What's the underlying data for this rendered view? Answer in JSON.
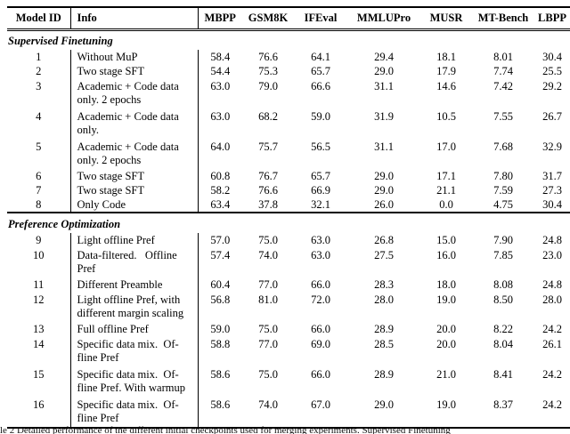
{
  "table": {
    "columns": [
      "Model ID",
      "Info",
      "MBPP",
      "GSM8K",
      "IFEval",
      "MMLUPro",
      "MUSR",
      "MT-Bench",
      "LBPP"
    ],
    "sections": [
      {
        "title": "Supervised Finetuning",
        "rows": [
          {
            "id": "1",
            "info": "Without MuP",
            "values": [
              "58.4",
              "76.6",
              "64.1",
              "29.4",
              "18.1",
              "8.01",
              "30.4"
            ]
          },
          {
            "id": "2",
            "info": "Two stage SFT",
            "values": [
              "54.4",
              "75.3",
              "65.7",
              "29.0",
              "17.9",
              "7.74",
              "25.5"
            ]
          },
          {
            "id": "3",
            "info": "Academic + Code data\nonly. 2 epochs",
            "values": [
              "63.0",
              "79.0",
              "66.6",
              "31.1",
              "14.6",
              "7.42",
              "29.2"
            ]
          },
          {
            "id": "4",
            "info": "Academic + Code data\nonly.",
            "values": [
              "63.0",
              "68.2",
              "59.0",
              "31.9",
              "10.5",
              "7.55",
              "26.7"
            ]
          },
          {
            "id": "5",
            "info": "Academic + Code data\nonly. 2 epochs",
            "values": [
              "64.0",
              "75.7",
              "56.5",
              "31.1",
              "17.0",
              "7.68",
              "32.9"
            ]
          },
          {
            "id": "6",
            "info": "Two stage SFT",
            "values": [
              "60.8",
              "76.7",
              "65.7",
              "29.0",
              "17.1",
              "7.80",
              "31.7"
            ]
          },
          {
            "id": "7",
            "info": "Two stage SFT",
            "values": [
              "58.2",
              "76.6",
              "66.9",
              "29.0",
              "21.1",
              "7.59",
              "27.3"
            ]
          },
          {
            "id": "8",
            "info": "Only Code",
            "values": [
              "63.4",
              "37.8",
              "32.1",
              "26.0",
              "0.0",
              "4.75",
              "30.4"
            ]
          }
        ]
      },
      {
        "title": "Preference Optimization",
        "rows": [
          {
            "id": "9",
            "info": "Light offline Pref",
            "values": [
              "57.0",
              "75.0",
              "63.0",
              "26.8",
              "15.0",
              "7.90",
              "24.8"
            ]
          },
          {
            "id": "10",
            "info": "Data-filtered.   Offline\nPref",
            "values": [
              "57.4",
              "74.0",
              "63.0",
              "27.5",
              "16.0",
              "7.85",
              "23.0"
            ]
          },
          {
            "id": "11",
            "info": "Different Preamble",
            "values": [
              "60.4",
              "77.0",
              "66.0",
              "28.3",
              "18.0",
              "8.08",
              "24.8"
            ]
          },
          {
            "id": "12",
            "info": "Light offline Pref, with\ndifferent margin scaling",
            "values": [
              "56.8",
              "81.0",
              "72.0",
              "28.0",
              "19.0",
              "8.50",
              "28.0"
            ]
          },
          {
            "id": "13",
            "info": "Full offline Pref",
            "values": [
              "59.0",
              "75.0",
              "66.0",
              "28.9",
              "20.0",
              "8.22",
              "24.2"
            ]
          },
          {
            "id": "14",
            "info": "Specific data mix.  Of-\nfline Pref",
            "values": [
              "58.8",
              "77.0",
              "69.0",
              "28.5",
              "20.0",
              "8.04",
              "26.1"
            ]
          },
          {
            "id": "15",
            "info": "Specific data mix.  Of-\nfline Pref. With warmup",
            "values": [
              "58.6",
              "75.0",
              "66.0",
              "28.9",
              "21.0",
              "8.41",
              "24.2"
            ]
          },
          {
            "id": "16",
            "info": "Specific data mix.  Of-\nfline Pref",
            "values": [
              "58.6",
              "74.0",
              "67.0",
              "29.0",
              "19.0",
              "8.37",
              "24.2"
            ]
          }
        ]
      }
    ]
  },
  "caption": "le 2 Detailed performance of the different initial checkpoints used for merging experiments. Supervised Finetuning"
}
